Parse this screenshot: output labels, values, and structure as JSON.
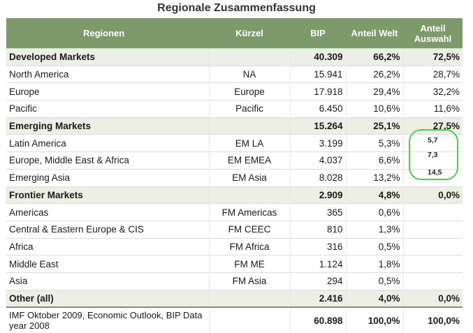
{
  "title": "Regionale Zusammenfassung",
  "columns": [
    "Regionen",
    "Kürzel",
    "BIP",
    "Anteil Welt",
    "Anteil Auswahl"
  ],
  "rows": [
    {
      "name": "Developed Markets",
      "code": "",
      "bip": "40.309",
      "welt": "66,2%",
      "auswahl": "72,5%",
      "group": true
    },
    {
      "name": "North America",
      "code": "NA",
      "bip": "15.941",
      "welt": "26,2%",
      "auswahl": "28,7%",
      "group": false
    },
    {
      "name": "Europe",
      "code": "Europe",
      "bip": "17.918",
      "welt": "29,4%",
      "auswahl": "32,2%",
      "group": false
    },
    {
      "name": "Pacific",
      "code": "Pacific",
      "bip": "6.450",
      "welt": "10,6%",
      "auswahl": "11,6%",
      "group": false
    },
    {
      "name": "Emerging Markets",
      "code": "",
      "bip": "15.264",
      "welt": "25,1%",
      "auswahl": "27,5%",
      "group": true
    },
    {
      "name": "Latin America",
      "code": "EM LA",
      "bip": "3.199",
      "welt": "5,3%",
      "auswahl": "",
      "group": false
    },
    {
      "name": "Europe, Middle East & Africa",
      "code": "EM EMEA",
      "bip": "4.037",
      "welt": "6,6%",
      "auswahl": "",
      "group": false
    },
    {
      "name": "Emerging Asia",
      "code": "EM Asia",
      "bip": "8.028",
      "welt": "13,2%",
      "auswahl": "",
      "group": false
    },
    {
      "name": "Frontier Markets",
      "code": "",
      "bip": "2.909",
      "welt": "4,8%",
      "auswahl": "0,0%",
      "group": true
    },
    {
      "name": "Americas",
      "code": "FM Americas",
      "bip": "365",
      "welt": "0,6%",
      "auswahl": "",
      "group": false
    },
    {
      "name": "Central & Eastern Europe & CIS",
      "code": "FM CEEC",
      "bip": "810",
      "welt": "1,3%",
      "auswahl": "",
      "group": false
    },
    {
      "name": "Africa",
      "code": "FM Africa",
      "bip": "316",
      "welt": "0,5%",
      "auswahl": "",
      "group": false
    },
    {
      "name": "Middle East",
      "code": "FM ME",
      "bip": "1.124",
      "welt": "1,8%",
      "auswahl": "",
      "group": false
    },
    {
      "name": "Asia",
      "code": "FM Asia",
      "bip": "294",
      "welt": "0,5%",
      "auswahl": "",
      "group": false
    },
    {
      "name": "Other (all)",
      "code": "",
      "bip": "2.416",
      "welt": "4,0%",
      "auswahl": "0,0%",
      "group": true
    }
  ],
  "footer": {
    "name": "IMF Oktober 2009, Economic Outlook, BIP Data year 2008",
    "bip": "60.898",
    "welt": "100,0%",
    "auswahl": "100,0%"
  },
  "annotations": [
    "5,7",
    "7,3",
    "14,5"
  ],
  "colors": {
    "header": "#7d9a6b",
    "group_row": "#ecefe4",
    "circle": "#49d34a"
  }
}
